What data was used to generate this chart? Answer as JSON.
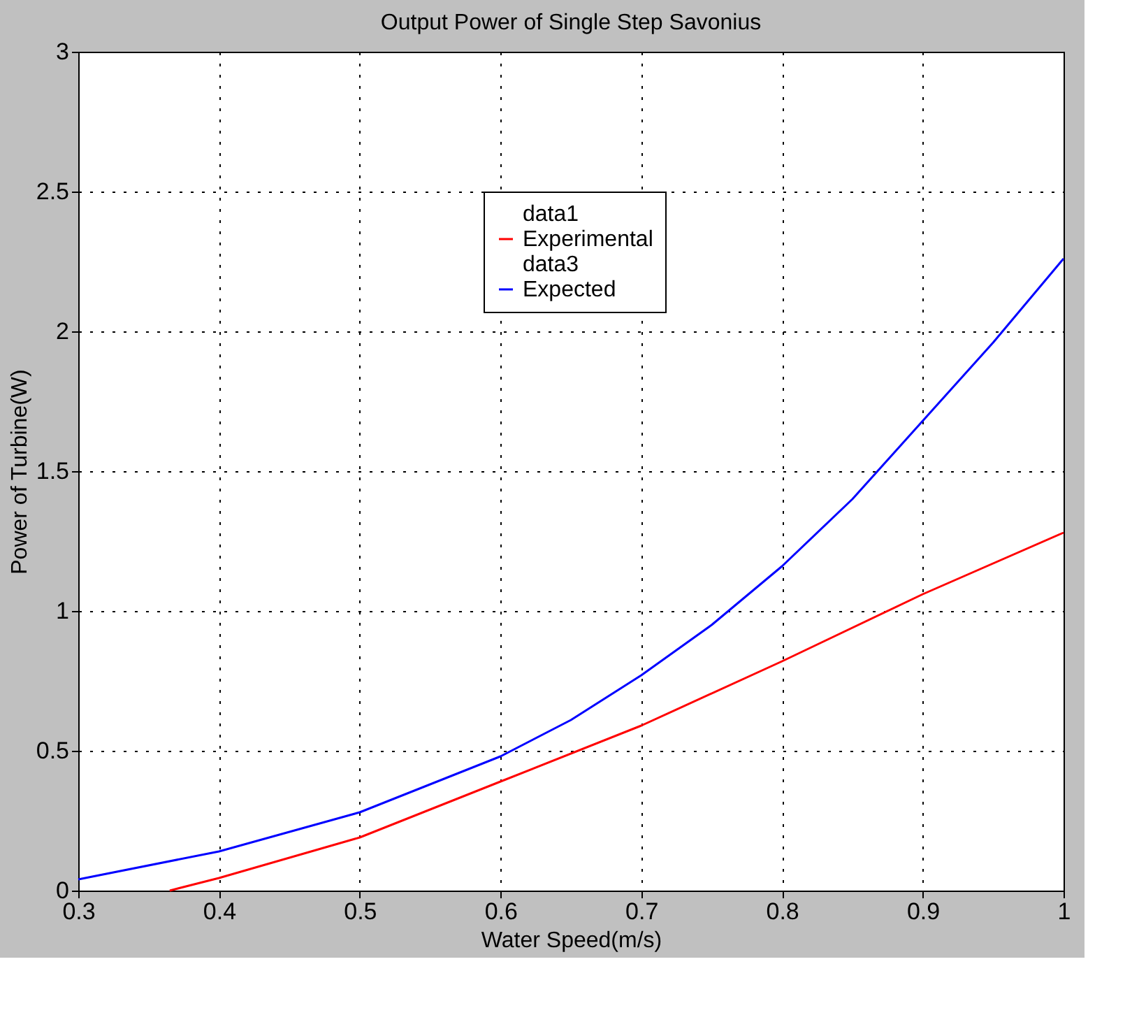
{
  "chart_data": {
    "type": "line",
    "title": "Output Power of Single Step Savonius",
    "xlabel": "Water Speed(m/s)",
    "ylabel": "Power of Turbine(W)",
    "xlim": [
      0.3,
      1
    ],
    "xticks": [
      0.3,
      0.4,
      0.5,
      0.6,
      0.7,
      0.8,
      0.9,
      1
    ],
    "ylim": [
      0,
      3
    ],
    "yticks": [
      0,
      0.5,
      1,
      1.5,
      2,
      2.5,
      3
    ],
    "grid": true,
    "legend": "top",
    "line_style": "solid",
    "marker": "none",
    "series": [
      {
        "name": "data1"
      },
      {
        "name": "Experimental",
        "color": "#ff0000",
        "x": [
          0.365,
          0.4,
          0.5,
          0.6,
          0.7,
          0.8,
          0.9,
          1
        ],
        "values": [
          0,
          0.045,
          0.19,
          0.39,
          0.59,
          0.82,
          1.06,
          1.28
        ]
      },
      {
        "name": "data3"
      },
      {
        "name": "Expected",
        "color": "#0000ff",
        "x": [
          0.3,
          0.4,
          0.5,
          0.6,
          0.65,
          0.7,
          0.75,
          0.8,
          0.85,
          0.9,
          0.95,
          1
        ],
        "values": [
          0.04,
          0.14,
          0.28,
          0.48,
          0.61,
          0.77,
          0.95,
          1.16,
          1.4,
          1.68,
          1.96,
          2.26
        ]
      }
    ]
  }
}
